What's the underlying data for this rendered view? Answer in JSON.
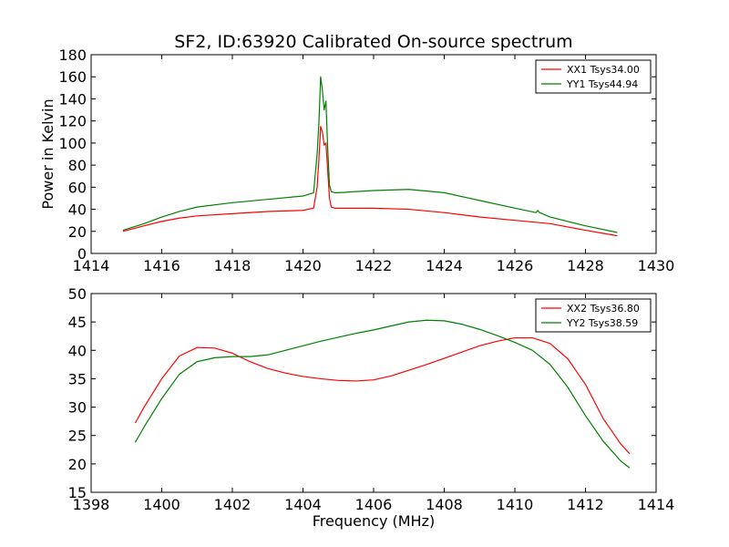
{
  "chart_data": [
    {
      "type": "line",
      "title": "SF2, ID:63920 Calibrated On-source spectrum",
      "xlabel": "",
      "ylabel": "Power in Kelvin",
      "xlim": [
        1414,
        1430
      ],
      "ylim": [
        0,
        180
      ],
      "xticks": [
        1414,
        1416,
        1418,
        1420,
        1422,
        1424,
        1426,
        1428,
        1430
      ],
      "yticks": [
        0,
        20,
        40,
        60,
        80,
        100,
        120,
        140,
        160,
        180
      ],
      "grid": false,
      "legend": "top-right",
      "series": [
        {
          "name": "XX1 Tsys34.00",
          "color": "#ff0000",
          "x": [
            1414.9,
            1415.5,
            1416,
            1416.5,
            1417,
            1418,
            1419,
            1420,
            1420.3,
            1420.4,
            1420.45,
            1420.5,
            1420.55,
            1420.6,
            1420.65,
            1420.7,
            1420.75,
            1420.8,
            1420.9,
            1421.0,
            1422,
            1423,
            1424,
            1425,
            1426,
            1427,
            1428,
            1428.9
          ],
          "y": [
            20,
            25,
            29,
            32,
            34,
            36,
            38,
            39,
            41,
            60,
            85,
            115,
            110,
            98,
            100,
            75,
            50,
            42,
            41,
            41,
            41,
            40,
            37,
            33,
            30,
            27,
            21,
            16
          ]
        },
        {
          "name": "YY1 Tsys44.94",
          "color": "#008000",
          "x": [
            1414.9,
            1415.5,
            1416,
            1416.5,
            1417,
            1418,
            1419,
            1420,
            1420.3,
            1420.4,
            1420.45,
            1420.5,
            1420.55,
            1420.6,
            1420.65,
            1420.7,
            1420.75,
            1420.8,
            1420.9,
            1421.0,
            1422,
            1423,
            1424,
            1425,
            1426,
            1426.6,
            1426.65,
            1426.7,
            1427,
            1428,
            1428.9
          ],
          "y": [
            21,
            27,
            33,
            38,
            42,
            46,
            49,
            52,
            55,
            90,
            118,
            160,
            148,
            130,
            138,
            95,
            62,
            56,
            55,
            55,
            57,
            58,
            55,
            48,
            41,
            37,
            39,
            37,
            33,
            25,
            19
          ]
        }
      ]
    },
    {
      "type": "line",
      "title": "",
      "xlabel": "Frequency (MHz)",
      "ylabel": "",
      "xlim": [
        1398,
        1414
      ],
      "ylim": [
        15,
        50
      ],
      "xticks": [
        1398,
        1400,
        1402,
        1404,
        1406,
        1408,
        1410,
        1412,
        1414
      ],
      "yticks": [
        15,
        20,
        25,
        30,
        35,
        40,
        45,
        50
      ],
      "grid": false,
      "legend": "top-right",
      "series": [
        {
          "name": "XX2 Tsys36.80",
          "color": "#ff0000",
          "x": [
            1399.25,
            1399.5,
            1400,
            1400.5,
            1401,
            1401.5,
            1402,
            1402.5,
            1403,
            1403.5,
            1404,
            1404.5,
            1405,
            1405.5,
            1406,
            1406.5,
            1407,
            1407.5,
            1408,
            1408.5,
            1409,
            1409.5,
            1410,
            1410.5,
            1411,
            1411.5,
            1412,
            1412.5,
            1413,
            1413.25
          ],
          "y": [
            27.2,
            30,
            35,
            39,
            40.5,
            40.4,
            39.5,
            38,
            36.8,
            36,
            35.4,
            35,
            34.7,
            34.6,
            34.8,
            35.5,
            36.5,
            37.5,
            38.6,
            39.7,
            40.8,
            41.6,
            42.2,
            42.2,
            41.2,
            38.5,
            34,
            28,
            23.5,
            21.8
          ]
        },
        {
          "name": "YY2 Tsys38.59",
          "color": "#008000",
          "x": [
            1399.25,
            1399.5,
            1400,
            1400.5,
            1401,
            1401.5,
            1402,
            1402.5,
            1403,
            1403.5,
            1404,
            1404.5,
            1405,
            1405.5,
            1406,
            1406.5,
            1407,
            1407.5,
            1408,
            1408.5,
            1409,
            1409.5,
            1410,
            1410.5,
            1411,
            1411.5,
            1412,
            1412.5,
            1413,
            1413.25
          ],
          "y": [
            23.8,
            26.5,
            31.5,
            35.8,
            38,
            38.7,
            38.9,
            38.9,
            39.2,
            40,
            40.8,
            41.6,
            42.3,
            43,
            43.6,
            44.3,
            45,
            45.3,
            45.2,
            44.6,
            43.7,
            42.6,
            41.4,
            40,
            37.5,
            33.5,
            28.5,
            24,
            20.5,
            19.3
          ]
        }
      ]
    }
  ]
}
